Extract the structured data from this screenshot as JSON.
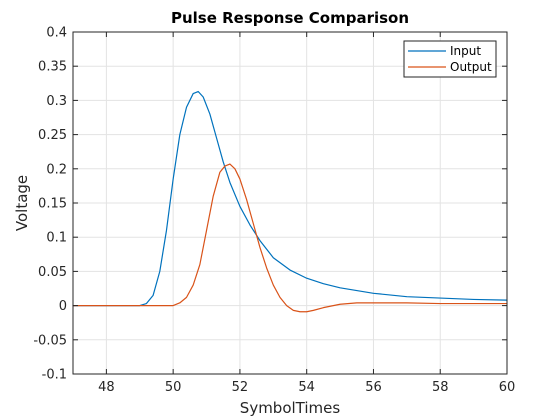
{
  "chart_data": {
    "type": "line",
    "title": "Pulse Response Comparison",
    "xlabel": "SymbolTimes",
    "ylabel": "Voltage",
    "xlim": [
      47,
      60
    ],
    "ylim": [
      -0.1,
      0.4
    ],
    "xticks": [
      "48",
      "50",
      "52",
      "54",
      "56",
      "58",
      "60"
    ],
    "xtick_values": [
      48,
      50,
      52,
      54,
      56,
      58,
      60
    ],
    "yticks": [
      "-0.1",
      "-0.05",
      "0",
      "0.05",
      "0.1",
      "0.15",
      "0.2",
      "0.25",
      "0.3",
      "0.35",
      "0.4"
    ],
    "ytick_values": [
      -0.1,
      -0.05,
      0,
      0.05,
      0.1,
      0.15,
      0.2,
      0.25,
      0.3,
      0.35,
      0.4
    ],
    "grid": true,
    "legend_position": "top-right",
    "series": [
      {
        "name": "Input",
        "color": "#0072BD",
        "x": [
          47,
          48,
          49,
          49.2,
          49.4,
          49.6,
          49.8,
          50,
          50.2,
          50.4,
          50.6,
          50.75,
          50.9,
          51.1,
          51.3,
          51.5,
          51.7,
          52,
          52.3,
          52.6,
          53,
          53.5,
          54,
          54.5,
          55,
          56,
          57,
          58,
          59,
          60
        ],
        "y": [
          0,
          0,
          0,
          0.003,
          0.015,
          0.05,
          0.11,
          0.185,
          0.25,
          0.29,
          0.31,
          0.313,
          0.305,
          0.28,
          0.245,
          0.21,
          0.18,
          0.145,
          0.118,
          0.095,
          0.07,
          0.052,
          0.04,
          0.032,
          0.026,
          0.018,
          0.013,
          0.011,
          0.009,
          0.008
        ]
      },
      {
        "name": "Output",
        "color": "#D95319",
        "x": [
          47,
          48,
          49,
          50,
          50.2,
          50.4,
          50.6,
          50.8,
          51,
          51.2,
          51.4,
          51.55,
          51.7,
          51.85,
          52,
          52.2,
          52.4,
          52.6,
          52.8,
          53,
          53.2,
          53.4,
          53.6,
          53.8,
          54,
          54.2,
          54.5,
          55,
          55.5,
          56,
          57,
          58,
          59,
          60
        ],
        "y": [
          0,
          0,
          0,
          0,
          0.004,
          0.012,
          0.03,
          0.06,
          0.11,
          0.16,
          0.195,
          0.204,
          0.207,
          0.2,
          0.185,
          0.155,
          0.12,
          0.085,
          0.055,
          0.03,
          0.012,
          0.0,
          -0.007,
          -0.009,
          -0.009,
          -0.007,
          -0.003,
          0.002,
          0.004,
          0.004,
          0.004,
          0.003,
          0.003,
          0.003
        ]
      }
    ]
  }
}
